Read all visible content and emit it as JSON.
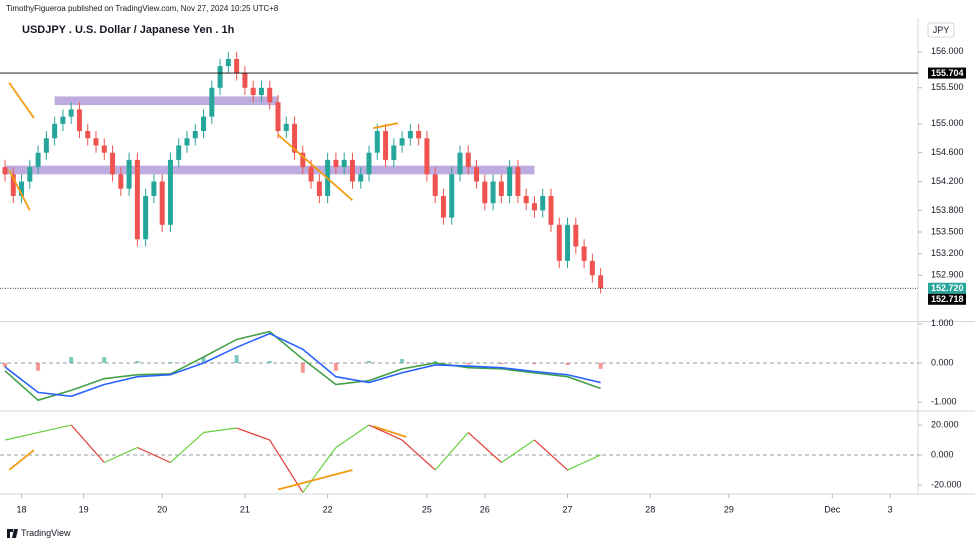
{
  "header": {
    "published": "TimothyFigueroa published on TradingView.com, Nov 27, 2024 10:25 UTC+8",
    "brand": "TradingView"
  },
  "chart_data": [
    {
      "type": "candlestick",
      "title": "USDJPY . U.S. Dollar / Japanese Yen . 1h",
      "currency": "JPY",
      "up_color": "#26a69a",
      "down_color": "#ef5350",
      "x": [
        0,
        2,
        4,
        6,
        8,
        10,
        12,
        14,
        16,
        18,
        20,
        22,
        24,
        26,
        28,
        30,
        32,
        34,
        36,
        38,
        40,
        42,
        44,
        46,
        48,
        50,
        52,
        54,
        56,
        58,
        60,
        62,
        64,
        66,
        68,
        70,
        72,
        74,
        76,
        78,
        80,
        82,
        84,
        86,
        88,
        90,
        92,
        94,
        96,
        98,
        100,
        102,
        104,
        106,
        108,
        110,
        112,
        114,
        116,
        118,
        120,
        122,
        124,
        126,
        128,
        130,
        132,
        134,
        136,
        138,
        140,
        142,
        144
      ],
      "open": [
        154.4,
        154.3,
        154.0,
        154.2,
        154.4,
        154.6,
        154.8,
        155.0,
        155.1,
        155.2,
        154.9,
        154.8,
        154.7,
        154.6,
        154.3,
        154.1,
        154.5,
        153.4,
        154.0,
        154.2,
        153.6,
        154.5,
        154.7,
        154.8,
        154.9,
        155.1,
        155.5,
        155.8,
        155.9,
        155.7,
        155.5,
        155.4,
        155.5,
        155.3,
        154.9,
        155.0,
        154.6,
        154.4,
        154.2,
        154.0,
        154.5,
        154.4,
        154.5,
        154.2,
        154.3,
        154.6,
        154.9,
        154.5,
        154.7,
        154.8,
        154.9,
        154.8,
        154.3,
        154.0,
        153.7,
        154.3,
        154.6,
        154.4,
        154.2,
        153.9,
        154.2,
        154.0,
        154.4,
        154.0,
        153.9,
        153.8,
        154.0,
        153.6,
        153.1,
        153.6,
        153.3,
        153.1,
        152.9
      ],
      "high": [
        154.5,
        154.4,
        154.3,
        154.5,
        154.7,
        154.9,
        155.1,
        155.2,
        155.3,
        155.3,
        155.0,
        154.9,
        154.8,
        154.7,
        154.4,
        154.6,
        154.6,
        154.1,
        154.3,
        154.3,
        154.6,
        154.8,
        154.9,
        155.0,
        155.2,
        155.6,
        155.9,
        156.0,
        156.0,
        155.8,
        155.6,
        155.6,
        155.6,
        155.4,
        155.1,
        155.1,
        154.7,
        154.5,
        154.3,
        154.6,
        154.6,
        154.6,
        154.6,
        154.4,
        154.7,
        155.0,
        155.0,
        154.8,
        154.9,
        155.0,
        155.0,
        154.9,
        154.4,
        154.1,
        154.4,
        154.7,
        154.7,
        154.5,
        154.3,
        154.3,
        154.3,
        154.5,
        154.5,
        154.1,
        154.0,
        154.1,
        154.1,
        153.7,
        153.7,
        153.7,
        153.4,
        153.2,
        153.0
      ],
      "low": [
        154.2,
        153.9,
        153.9,
        154.1,
        154.3,
        154.5,
        154.7,
        154.9,
        155.0,
        154.8,
        154.7,
        154.6,
        154.5,
        154.2,
        154.0,
        154.0,
        153.3,
        153.3,
        153.9,
        153.5,
        153.5,
        154.4,
        154.6,
        154.7,
        154.8,
        155.0,
        155.4,
        155.7,
        155.6,
        155.4,
        155.3,
        155.3,
        155.2,
        154.8,
        154.8,
        154.5,
        154.3,
        154.1,
        153.9,
        153.9,
        154.3,
        154.3,
        154.1,
        154.1,
        154.2,
        154.5,
        154.4,
        154.4,
        154.6,
        154.7,
        154.7,
        154.2,
        153.9,
        153.6,
        153.6,
        154.2,
        154.3,
        154.1,
        153.8,
        153.8,
        153.9,
        153.9,
        153.9,
        153.8,
        153.7,
        153.7,
        153.5,
        153.0,
        153.0,
        153.2,
        153.0,
        152.8,
        152.65
      ],
      "close": [
        154.3,
        154.0,
        154.2,
        154.4,
        154.6,
        154.8,
        155.0,
        155.1,
        155.2,
        154.9,
        154.8,
        154.7,
        154.6,
        154.3,
        154.1,
        154.5,
        153.4,
        154.0,
        154.2,
        153.6,
        154.5,
        154.7,
        154.8,
        154.9,
        155.1,
        155.5,
        155.8,
        155.9,
        155.7,
        155.5,
        155.4,
        155.5,
        155.3,
        154.9,
        155.0,
        154.6,
        154.4,
        154.2,
        154.0,
        154.5,
        154.4,
        154.5,
        154.2,
        154.3,
        154.6,
        154.9,
        154.5,
        154.7,
        154.8,
        154.9,
        154.8,
        154.3,
        154.0,
        153.7,
        154.3,
        154.6,
        154.4,
        154.2,
        153.9,
        154.2,
        154.0,
        154.4,
        154.0,
        153.9,
        153.8,
        154.0,
        153.6,
        153.1,
        153.6,
        153.3,
        153.1,
        152.9,
        152.72
      ],
      "xlim": [
        0,
        220
      ],
      "ylim": [
        152.28,
        156.44
      ],
      "yticks": [
        {
          "value": 156.0,
          "label": "156.000"
        },
        {
          "value": 155.5,
          "label": "155.500"
        },
        {
          "value": 155.0,
          "label": "155.000"
        },
        {
          "value": 154.6,
          "label": "154.600"
        },
        {
          "value": 154.2,
          "label": "154.200"
        },
        {
          "value": 153.8,
          "label": "153.800"
        },
        {
          "value": 153.5,
          "label": "153.500"
        },
        {
          "value": 153.2,
          "label": "153.200"
        },
        {
          "value": 152.9,
          "label": "152.900"
        }
      ],
      "price_lines": [
        {
          "value": 155.704,
          "color": "#000000",
          "line": "solid"
        },
        {
          "value": {
            "value": 152.72,
            "label": "152.720"
          },
          "color": "#26a69a",
          "line": "dotted"
        },
        {
          "value": 152.718,
          "color": "#000000"
        }
      ],
      "zones": [
        {
          "x": [
            12,
            66
          ],
          "y": [
            155.26,
            155.38
          ],
          "color": "#b39ddb"
        },
        {
          "x": [
            0,
            128
          ],
          "y": [
            154.3,
            154.42
          ],
          "color": "#b39ddb"
        }
      ],
      "trendlines": [
        {
          "x": [
            1,
            7
          ],
          "y": [
            155.57,
            155.08
          ],
          "color": "#f39c12"
        },
        {
          "x": [
            1,
            6
          ],
          "y": [
            154.36,
            153.8
          ],
          "color": "#f39c12"
        },
        {
          "x": [
            66,
            84
          ],
          "y": [
            154.85,
            153.94
          ],
          "color": "#f39c12"
        },
        {
          "x": [
            89,
            95
          ],
          "y": [
            154.94,
            155.01
          ],
          "color": "#f39c12"
        }
      ]
    },
    {
      "type": "macd",
      "x": [
        0,
        8,
        16,
        24,
        32,
        40,
        48,
        56,
        64,
        72,
        80,
        88,
        96,
        104,
        112,
        120,
        128,
        136,
        144
      ],
      "series": [
        {
          "color": "#43a047",
          "values": [
            -0.2,
            -0.95,
            -0.7,
            -0.4,
            -0.3,
            -0.28,
            0.15,
            0.6,
            0.8,
            0.1,
            -0.55,
            -0.45,
            -0.15,
            0.0,
            -0.12,
            -0.15,
            -0.25,
            -0.35,
            -0.65
          ]
        },
        {
          "color": "#2962ff",
          "values": [
            -0.1,
            -0.75,
            -0.85,
            -0.55,
            -0.35,
            -0.3,
            0.0,
            0.4,
            0.75,
            0.35,
            -0.35,
            -0.5,
            -0.25,
            -0.05,
            -0.08,
            -0.12,
            -0.22,
            -0.3,
            -0.5
          ]
        }
      ],
      "histogram": {
        "up_color": "#26a69a",
        "down_color": "#ef5350",
        "values": [
          -0.1,
          -0.2,
          0.15,
          0.15,
          0.05,
          0.02,
          0.15,
          0.2,
          0.05,
          -0.25,
          -0.2,
          0.05,
          0.1,
          0.05,
          -0.04,
          -0.03,
          -0.03,
          -0.05,
          -0.15
        ]
      },
      "xlim": [
        0,
        220
      ],
      "ylim": [
        -1.2,
        1.02
      ],
      "yticks": [
        {
          "value": 1,
          "label": "1.000"
        },
        {
          "value": 0,
          "label": "0.000"
        },
        {
          "value": -1,
          "label": "-1.000"
        }
      ]
    },
    {
      "type": "oscillator",
      "x": [
        0,
        8,
        16,
        24,
        32,
        40,
        48,
        56,
        64,
        72,
        80,
        88,
        96,
        104,
        112,
        120,
        128,
        136,
        144
      ],
      "values": [
        10,
        15,
        20,
        -5,
        5,
        -5,
        15,
        18,
        10,
        -25,
        5,
        20,
        10,
        -10,
        15,
        -5,
        10,
        -10,
        0
      ],
      "up_color": "#66d13c",
      "down_color": "#e53935",
      "xlim": [
        0,
        220
      ],
      "ylim": [
        -24.7,
        28.7
      ],
      "yticks": [
        {
          "value": 20,
          "label": "20.000"
        },
        {
          "value": 0,
          "label": "0.000"
        },
        {
          "value": -20,
          "label": "-20.000"
        }
      ],
      "trendlines": [
        {
          "x": [
            1,
            7
          ],
          "y": [
            -10,
            3.3
          ],
          "color": "#f39c12"
        },
        {
          "x": [
            66,
            84
          ],
          "y": [
            -23,
            -10
          ],
          "color": "#f39c12"
        },
        {
          "x": [
            89,
            97
          ],
          "y": [
            19.3,
            12
          ],
          "color": "#f39c12"
        }
      ],
      "xticks": [
        {
          "value": 4,
          "label": "18"
        },
        {
          "value": 19,
          "label": "19"
        },
        {
          "value": 38,
          "label": "20"
        },
        {
          "value": 58,
          "label": "21"
        },
        {
          "value": 78,
          "label": "22"
        },
        {
          "value": 102,
          "label": "25"
        },
        {
          "value": 116,
          "label": "26"
        },
        {
          "value": 136,
          "label": "27"
        },
        {
          "value": 156,
          "label": "28"
        },
        {
          "value": 175,
          "label": "29"
        },
        {
          "value": 200,
          "label": "Dec"
        },
        {
          "value": 214,
          "label": "3"
        }
      ]
    }
  ]
}
